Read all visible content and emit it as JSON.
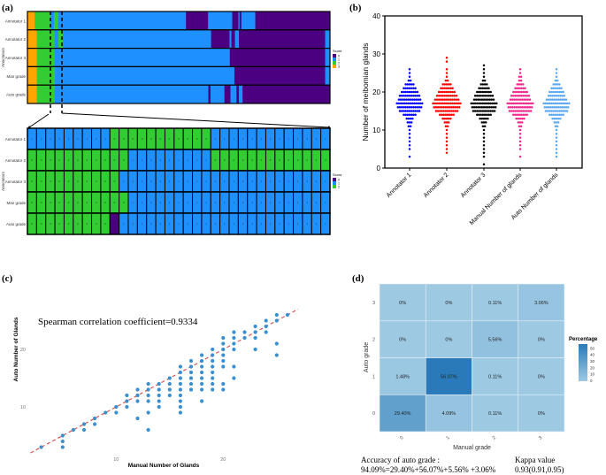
{
  "panel_labels": {
    "a": "(a)",
    "b": "(b)",
    "c": "(c)",
    "d": "(d)"
  },
  "chart_data": [
    {
      "id": "a_overview",
      "type": "heatmap",
      "ylabel": "Annotators",
      "rows": [
        "Annotator 1",
        "Annotator 2",
        "Annotator 3",
        "Man grade",
        "Auto grade"
      ],
      "legend_title": "Score",
      "legend_items": [
        "0",
        "1",
        "2",
        "3"
      ],
      "colors": {
        "0": "#4b0082",
        "1": "#1e90ff",
        "2": "#32cd32",
        "3": "#ffa500"
      },
      "segments_percent": [
        [
          [
            3,
            2.4
          ],
          [
            2,
            5.3
          ],
          [
            1,
            1.1
          ],
          [
            2,
            1.4
          ],
          [
            1,
            42.2
          ],
          [
            0,
            7.3
          ],
          [
            1,
            8.0
          ],
          [
            0,
            2.0
          ],
          [
            1,
            0.4
          ],
          [
            0,
            0.6
          ],
          [
            1,
            4.6
          ],
          [
            0,
            24.7
          ]
        ],
        [
          [
            3,
            3.1
          ],
          [
            2,
            5.9
          ],
          [
            1,
            1.2
          ],
          [
            2,
            1.5
          ],
          [
            1,
            49.0
          ],
          [
            0,
            6.1
          ],
          [
            1,
            0.6
          ],
          [
            0,
            1.2
          ],
          [
            1,
            1.3
          ],
          [
            0,
            28.5
          ],
          [
            1,
            1.6
          ]
        ],
        [
          [
            3,
            3.1
          ],
          [
            2,
            5.9
          ],
          [
            1,
            57.9
          ],
          [
            0,
            31.5
          ],
          [
            1,
            1.6
          ]
        ],
        [
          [
            3,
            3.1
          ],
          [
            2,
            6.0
          ],
          [
            1,
            59.3
          ],
          [
            0,
            30.0
          ],
          [
            1,
            1.6
          ]
        ],
        [
          [
            3,
            3.1
          ],
          [
            2,
            5.9
          ],
          [
            1,
            50.8
          ],
          [
            0,
            0.7
          ],
          [
            1,
            4.6
          ],
          [
            0,
            2.0
          ],
          [
            1,
            2.0
          ],
          [
            0,
            0.8
          ],
          [
            1,
            1.2
          ],
          [
            0,
            28.9
          ]
        ]
      ]
    },
    {
      "id": "a_zoom",
      "type": "heatmap",
      "ylabel": "Annotators",
      "rows": [
        "Annotator 1",
        "Annotator 2",
        "Annotator 3",
        "Man grade",
        "Auto grade"
      ],
      "legend_title": "Score",
      "legend_items": [
        "0",
        "1",
        "2"
      ],
      "colors": {
        "0": "#4b0082",
        "1": "#1e90ff",
        "2": "#32cd32"
      },
      "cells": [
        [
          1,
          1,
          1,
          1,
          1,
          1,
          1,
          1,
          1,
          2,
          2,
          2,
          2,
          2,
          2,
          2,
          2,
          2,
          2,
          2,
          1,
          1,
          1,
          1,
          1,
          1,
          1,
          1,
          1,
          1,
          1,
          1,
          1
        ],
        [
          2,
          2,
          2,
          2,
          2,
          2,
          2,
          2,
          2,
          2,
          2,
          1,
          1,
          1,
          1,
          1,
          1,
          1,
          1,
          1,
          2,
          2,
          2,
          2,
          2,
          2,
          2,
          2,
          2,
          2,
          2,
          2,
          2
        ],
        [
          2,
          2,
          2,
          2,
          2,
          2,
          2,
          2,
          2,
          2,
          1,
          1,
          1,
          1,
          1,
          1,
          1,
          1,
          1,
          1,
          1,
          1,
          1,
          1,
          1,
          1,
          1,
          1,
          1,
          1,
          1,
          1,
          1
        ],
        [
          2,
          2,
          2,
          2,
          2,
          2,
          2,
          2,
          2,
          2,
          2,
          1,
          1,
          1,
          1,
          1,
          1,
          1,
          1,
          1,
          1,
          1,
          1,
          1,
          1,
          1,
          1,
          1,
          1,
          1,
          1,
          1,
          1
        ],
        [
          2,
          2,
          2,
          2,
          2,
          2,
          2,
          2,
          2,
          0,
          1,
          1,
          1,
          1,
          1,
          1,
          1,
          1,
          1,
          1,
          1,
          1,
          1,
          1,
          1,
          1,
          1,
          1,
          1,
          1,
          1,
          1,
          1
        ]
      ]
    },
    {
      "id": "b",
      "type": "scatter",
      "subtype": "beeswarm",
      "ylabel": "Number of meibomian glands",
      "ylim": [
        0,
        40
      ],
      "yticks": [
        "0",
        "10",
        "20",
        "30",
        "40"
      ],
      "categories": [
        "Annotator 1",
        "Annotator 2",
        "Annotator 3",
        "Manual Number of glands",
        "Auto Number of glands"
      ],
      "colors": [
        "#0000ff",
        "#ff0000",
        "#000000",
        "#f0288c",
        "#5aa9f0"
      ],
      "value_counts": [
        {
          "3": 1,
          "5": 1,
          "6": 1,
          "7": 1,
          "8": 1,
          "9": 1,
          "10": 1,
          "11": 2,
          "12": 3,
          "13": 4,
          "14": 7,
          "15": 11,
          "16": 13,
          "17": 14,
          "18": 12,
          "19": 11,
          "20": 9,
          "21": 7,
          "22": 5,
          "23": 2,
          "24": 1,
          "25": 1,
          "26": 1
        },
        {
          "4": 1,
          "5": 1,
          "6": 1,
          "7": 1,
          "8": 1,
          "9": 1,
          "10": 1,
          "11": 2,
          "12": 3,
          "13": 5,
          "14": 8,
          "15": 12,
          "16": 14,
          "17": 15,
          "18": 13,
          "19": 11,
          "20": 9,
          "21": 7,
          "22": 5,
          "23": 2,
          "24": 1,
          "25": 1,
          "26": 1,
          "28": 1,
          "29": 1
        },
        {
          "1": 1,
          "3": 1,
          "4": 1,
          "5": 1,
          "6": 1,
          "7": 1,
          "8": 1,
          "9": 1,
          "10": 1,
          "11": 2,
          "12": 3,
          "13": 5,
          "14": 8,
          "15": 12,
          "16": 13,
          "17": 14,
          "18": 11,
          "19": 10,
          "20": 8,
          "21": 6,
          "22": 4,
          "23": 2,
          "24": 1,
          "25": 1,
          "26": 1,
          "27": 1
        },
        {
          "3": 1,
          "5": 1,
          "6": 1,
          "7": 1,
          "8": 1,
          "9": 1,
          "10": 1,
          "11": 2,
          "12": 3,
          "13": 5,
          "14": 8,
          "15": 12,
          "16": 13,
          "17": 14,
          "18": 11,
          "19": 10,
          "20": 8,
          "21": 6,
          "22": 4,
          "23": 2,
          "24": 2,
          "25": 1,
          "26": 1
        },
        {
          "3": 1,
          "4": 1,
          "5": 1,
          "6": 1,
          "7": 1,
          "8": 1,
          "9": 1,
          "10": 1,
          "11": 2,
          "12": 3,
          "13": 5,
          "14": 8,
          "15": 12,
          "16": 13,
          "17": 14,
          "18": 11,
          "19": 9,
          "20": 8,
          "21": 6,
          "22": 4,
          "23": 2,
          "24": 1,
          "25": 1,
          "26": 1
        }
      ]
    },
    {
      "id": "c",
      "type": "scatter",
      "annotation": "Spearman correlation coefficient=0.9334",
      "xlabel": "Manual Number of Glands",
      "ylabel": "Auto Number of Glands",
      "xticks": [
        "10",
        "20"
      ],
      "yticks": [
        "10",
        "20"
      ],
      "xlim": [
        2,
        27
      ],
      "ylim": [
        2,
        27
      ],
      "reference_line": "y = x",
      "point_color": "#3a8fd0",
      "line_color": "#d9534f",
      "points": [
        [
          3,
          3
        ],
        [
          5,
          5
        ],
        [
          5,
          4
        ],
        [
          5,
          3
        ],
        [
          6,
          6
        ],
        [
          7,
          7
        ],
        [
          7,
          6
        ],
        [
          8,
          8
        ],
        [
          8,
          7
        ],
        [
          9,
          9
        ],
        [
          10,
          10
        ],
        [
          10,
          9
        ],
        [
          11,
          12
        ],
        [
          11,
          11
        ],
        [
          11,
          10
        ],
        [
          12,
          13
        ],
        [
          12,
          12
        ],
        [
          12,
          11
        ],
        [
          12,
          8
        ],
        [
          13,
          14
        ],
        [
          13,
          13
        ],
        [
          13,
          12
        ],
        [
          13,
          11
        ],
        [
          13,
          9
        ],
        [
          13,
          6
        ],
        [
          14,
          14
        ],
        [
          14,
          13
        ],
        [
          14,
          12
        ],
        [
          14,
          11
        ],
        [
          14,
          10
        ],
        [
          15,
          15
        ],
        [
          15,
          14
        ],
        [
          15,
          13
        ],
        [
          15,
          12
        ],
        [
          16,
          17
        ],
        [
          16,
          16
        ],
        [
          16,
          15
        ],
        [
          16,
          14
        ],
        [
          16,
          13
        ],
        [
          16,
          12
        ],
        [
          16,
          11
        ],
        [
          16,
          10
        ],
        [
          16,
          9
        ],
        [
          17,
          18
        ],
        [
          17,
          17
        ],
        [
          17,
          16
        ],
        [
          17,
          15
        ],
        [
          17,
          14
        ],
        [
          17,
          13
        ],
        [
          18,
          19
        ],
        [
          18,
          18
        ],
        [
          18,
          17
        ],
        [
          18,
          16
        ],
        [
          18,
          15
        ],
        [
          18,
          14
        ],
        [
          18,
          13
        ],
        [
          18,
          11
        ],
        [
          19,
          20
        ],
        [
          19,
          19
        ],
        [
          19,
          18
        ],
        [
          19,
          17
        ],
        [
          19,
          16
        ],
        [
          19,
          15
        ],
        [
          19,
          14
        ],
        [
          19,
          13
        ],
        [
          20,
          22
        ],
        [
          20,
          21
        ],
        [
          20,
          20
        ],
        [
          20,
          19
        ],
        [
          20,
          18
        ],
        [
          20,
          17
        ],
        [
          20,
          14
        ],
        [
          20,
          13
        ],
        [
          21,
          23
        ],
        [
          21,
          22
        ],
        [
          21,
          21
        ],
        [
          21,
          20
        ],
        [
          21,
          17
        ],
        [
          21,
          15
        ],
        [
          22,
          23
        ],
        [
          22,
          22
        ],
        [
          23,
          24
        ],
        [
          23,
          23
        ],
        [
          23,
          22
        ],
        [
          23,
          20
        ],
        [
          24,
          25
        ],
        [
          24,
          24
        ],
        [
          24,
          23
        ],
        [
          25,
          26
        ],
        [
          25,
          25
        ],
        [
          25,
          21
        ],
        [
          25,
          19
        ],
        [
          26,
          26
        ]
      ]
    },
    {
      "id": "d",
      "type": "heatmap",
      "xlabel": "Manual grade",
      "ylabel": "Auto grade",
      "x_categories": [
        "0",
        "1",
        "2",
        "3"
      ],
      "y_categories": [
        "0",
        "1",
        "2",
        "3"
      ],
      "values": [
        [
          29.4,
          4.09,
          0.11,
          0
        ],
        [
          1.48,
          56.07,
          0.11,
          0
        ],
        [
          0,
          0,
          5.56,
          0
        ],
        [
          0,
          0,
          0.11,
          3.06
        ]
      ],
      "labels": [
        [
          "29.40%",
          "4.09%",
          "0.11%",
          "0%"
        ],
        [
          "1.48%",
          "56.07%",
          "0.11%",
          "0%"
        ],
        [
          "0%",
          "0%",
          "5.56%",
          "0%"
        ],
        [
          "0%",
          "0%",
          "0.11%",
          "3.06%"
        ]
      ],
      "legend_title": "Percentage",
      "legend_ticks": [
        "50",
        "40",
        "30",
        "20",
        "10",
        "0"
      ],
      "color_low": "#9dc9e3",
      "color_high": "#2a7ab9"
    }
  ],
  "footer": {
    "accuracy_label": "Accuracy of auto grade :",
    "accuracy_formula": "94.09%=29.40%+56.07%+5.56% +3.06%",
    "kappa_label": "Kappa value",
    "kappa_value": "0.93(0.91,0.95)"
  }
}
